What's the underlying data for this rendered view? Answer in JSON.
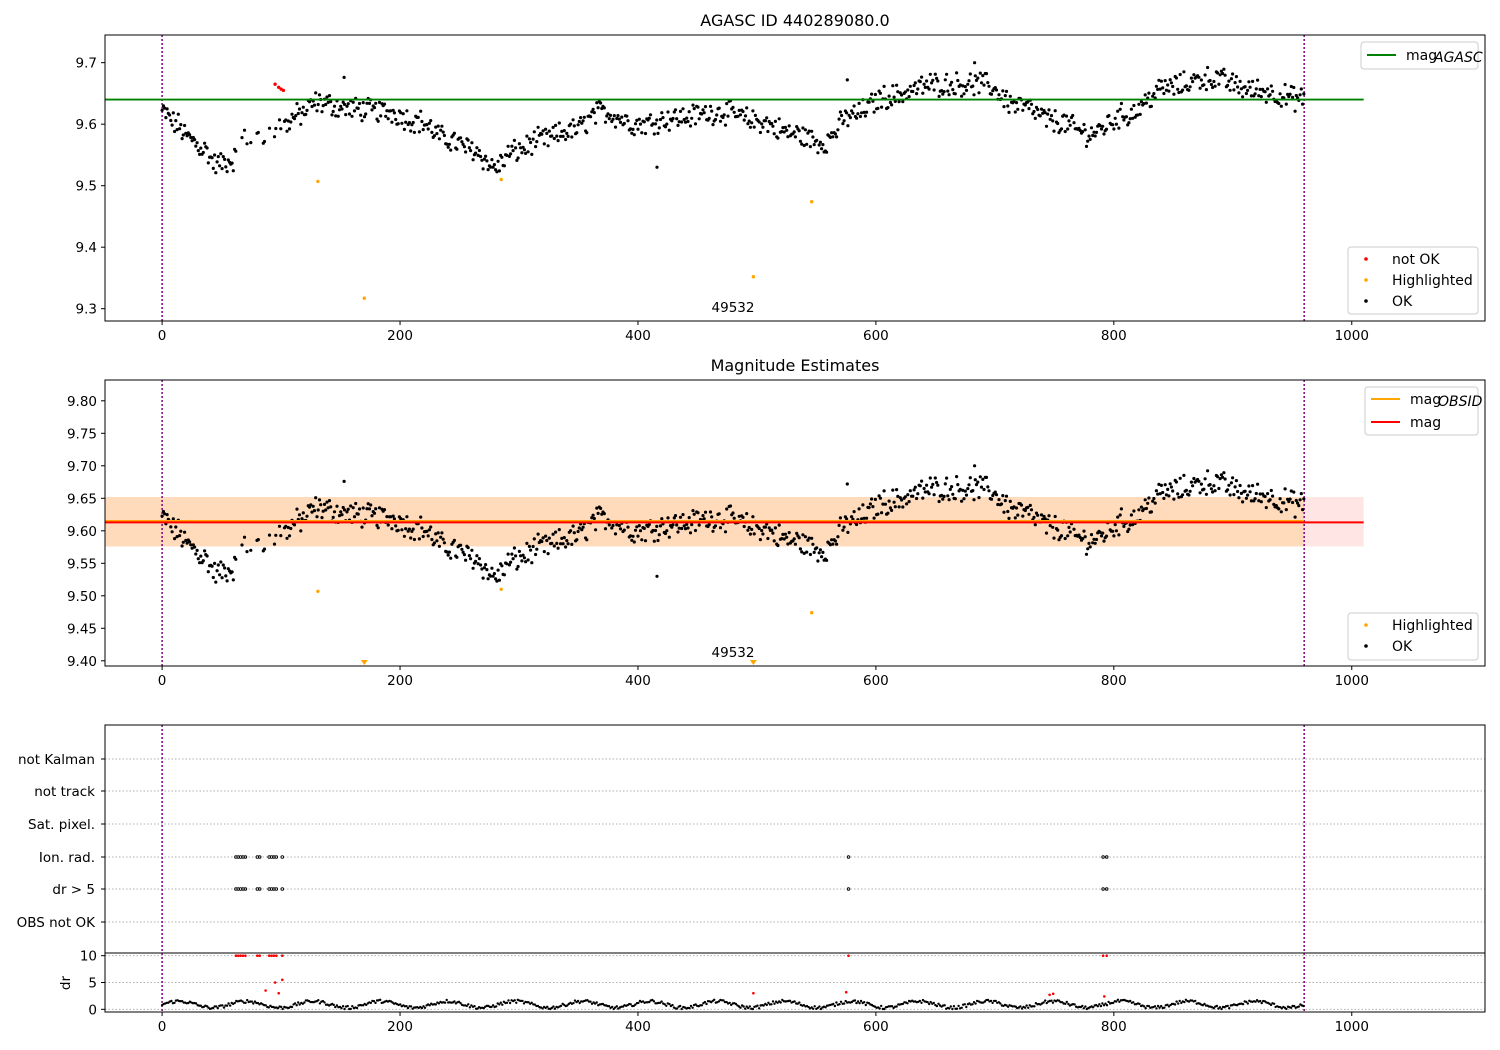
{
  "colors": {
    "ok": "#000000",
    "not_ok": "#ff0000",
    "highlighted": "#ffa500",
    "mag_agasc": "#008000",
    "mag_obsid": "#ffa500",
    "mag": "#ff0000",
    "obs_boundary": "#800080",
    "band_obsid": "#ffdab9",
    "band_mag": "#ffe4e1"
  },
  "chart_data": [
    {
      "id": "top",
      "type": "scatter",
      "title": "AGASC ID 440289080.0",
      "xlim": [
        -48,
        1112
      ],
      "ylim": [
        9.28,
        9.745
      ],
      "xticks": [
        0,
        200,
        400,
        600,
        800,
        1000
      ],
      "yticks": [
        9.3,
        9.4,
        9.5,
        9.6,
        9.7
      ],
      "ytick_labels": [
        "9.3",
        "9.4",
        "9.5",
        "9.6",
        "9.7"
      ],
      "obs_boundaries": [
        0,
        960
      ],
      "obsid_label": {
        "text": "49532",
        "x": 480,
        "y": 9.29
      },
      "hlines": [
        {
          "name": "mag_AGASC",
          "y": 9.64,
          "x0": -48,
          "x1": 1010,
          "color_key": "mag_agasc"
        }
      ],
      "legend_lines": [
        {
          "name": "mag",
          "sub": "AGASC",
          "color_key": "mag_agasc"
        }
      ],
      "legend_points": [
        {
          "name": "not OK",
          "color_key": "not_ok"
        },
        {
          "name": "Highlighted",
          "color_key": "highlighted"
        },
        {
          "name": "OK",
          "color_key": "ok"
        }
      ],
      "series_extra": [
        {
          "name": "not OK",
          "color_key": "not_ok",
          "points": [
            [
              95,
              9.665
            ],
            [
              98,
              9.66
            ],
            [
              100,
              9.657
            ],
            [
              102,
              9.655
            ]
          ]
        },
        {
          "name": "Highlighted",
          "color_key": "highlighted",
          "points": [
            [
              131,
              9.507
            ],
            [
              170,
              9.317
            ],
            [
              285,
              9.51
            ],
            [
              497,
              9.352
            ],
            [
              546,
              9.474
            ]
          ]
        }
      ],
      "ok_range": [
        0,
        960
      ]
    },
    {
      "id": "mid",
      "type": "scatter",
      "title": "Magnitude Estimates",
      "xlim": [
        -48,
        1112
      ],
      "ylim": [
        9.392,
        9.832
      ],
      "xticks": [
        0,
        200,
        400,
        600,
        800,
        1000
      ],
      "yticks": [
        9.4,
        9.45,
        9.5,
        9.55,
        9.6,
        9.65,
        9.7,
        9.75,
        9.8
      ],
      "ytick_labels": [
        "9.40",
        "9.45",
        "9.50",
        "9.55",
        "9.60",
        "9.65",
        "9.70",
        "9.75",
        "9.80"
      ],
      "obs_boundaries": [
        0,
        960
      ],
      "obsid_label": {
        "text": "49532",
        "x": 480,
        "y": 9.403
      },
      "bands": [
        {
          "name": "mag band",
          "y0": 9.576,
          "y1": 9.652,
          "x0": -48,
          "x1": 1010,
          "color_key": "band_mag"
        },
        {
          "name": "mag_OBSID band",
          "y0": 9.576,
          "y1": 9.652,
          "x0": -48,
          "x1": 960,
          "color_key": "band_obsid"
        }
      ],
      "hlines": [
        {
          "name": "mag_OBSID",
          "y": 9.615,
          "x0": -48,
          "x1": 960,
          "color_key": "mag_obsid"
        },
        {
          "name": "mag",
          "y": 9.613,
          "x0": -48,
          "x1": 1010,
          "color_key": "mag"
        }
      ],
      "legend_lines": [
        {
          "name": "mag",
          "sub": "OBSID",
          "color_key": "mag_obsid"
        },
        {
          "name": "mag",
          "sub": "",
          "color_key": "mag"
        }
      ],
      "legend_points": [
        {
          "name": "Highlighted",
          "color_key": "highlighted"
        },
        {
          "name": "OK",
          "color_key": "ok"
        }
      ],
      "series_extra": [
        {
          "name": "Highlighted",
          "color_key": "highlighted",
          "points": [
            [
              131,
              9.507
            ],
            [
              285,
              9.51
            ],
            [
              546,
              9.474
            ]
          ]
        }
      ],
      "markers_down": [
        {
          "x": 170,
          "y": 9.395
        },
        {
          "x": 497,
          "y": 9.395
        }
      ],
      "ok_range": [
        0,
        960
      ]
    },
    {
      "id": "flags",
      "type": "scatter",
      "categories": [
        "not Kalman",
        "not track",
        "Sat. pixel.",
        "Ion. rad.",
        "dr > 5",
        "OBS not OK"
      ],
      "xlim": [
        -48,
        1112
      ],
      "obs_boundaries": [
        0,
        960
      ],
      "flag_points": {
        "Ion. rad.": [
          62,
          64,
          66,
          68,
          70,
          80,
          82,
          90,
          92,
          94,
          96,
          101,
          577,
          791,
          794
        ],
        "dr > 5": [
          62,
          64,
          66,
          68,
          70,
          80,
          82,
          90,
          92,
          94,
          96,
          101,
          577,
          791,
          794
        ]
      }
    },
    {
      "id": "dr",
      "type": "scatter",
      "ylabel": "dr",
      "xlim": [
        -48,
        1112
      ],
      "ylim": [
        -0.5,
        10.5
      ],
      "xticks": [
        0,
        200,
        400,
        600,
        800,
        1000
      ],
      "yticks": [
        0,
        5,
        10
      ],
      "ytick_labels": [
        "0",
        "5",
        "10"
      ],
      "obs_boundaries": [
        0,
        960
      ],
      "red_points": [
        [
          62,
          10
        ],
        [
          64,
          10
        ],
        [
          66,
          10
        ],
        [
          68,
          10
        ],
        [
          70,
          10
        ],
        [
          80,
          10
        ],
        [
          82,
          10
        ],
        [
          90,
          10
        ],
        [
          92,
          10
        ],
        [
          94,
          10
        ],
        [
          96,
          10
        ],
        [
          101,
          10
        ],
        [
          87,
          3.5
        ],
        [
          95,
          5
        ],
        [
          98,
          3
        ],
        [
          101,
          5.5
        ],
        [
          497,
          3
        ],
        [
          577,
          10
        ],
        [
          575,
          3.2
        ],
        [
          746,
          2.7
        ],
        [
          749,
          2.9
        ],
        [
          791,
          10
        ],
        [
          794,
          10
        ],
        [
          792,
          2.4
        ]
      ],
      "ok_range": [
        0,
        960
      ]
    }
  ]
}
